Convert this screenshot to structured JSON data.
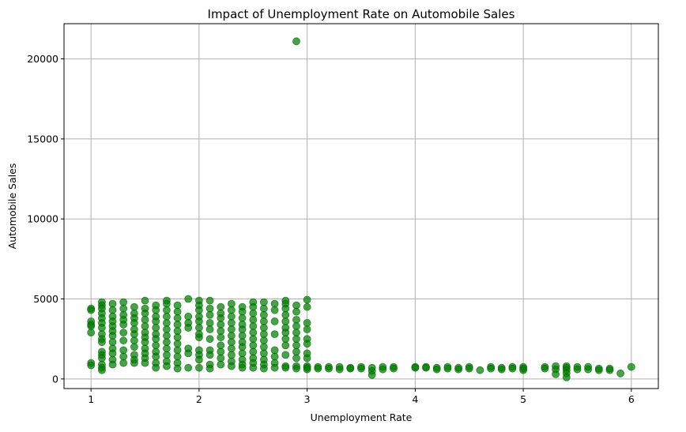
{
  "chart_data": {
    "type": "scatter",
    "title": "Impact of Unemployment Rate on Automobile Sales",
    "xlabel": "Unemployment Rate",
    "ylabel": "Automobile Sales",
    "xlim": [
      0.75,
      6.25
    ],
    "ylim": [
      -600,
      22200
    ],
    "xticks": [
      1,
      2,
      3,
      4,
      5,
      6
    ],
    "yticks": [
      0,
      5000,
      10000,
      15000,
      20000
    ],
    "grid": true,
    "color": "#008000",
    "series": [
      {
        "points": [
          [
            1.0,
            4400
          ],
          [
            1.0,
            4300
          ],
          [
            1.0,
            3600
          ],
          [
            1.0,
            3400
          ],
          [
            1.0,
            3300
          ],
          [
            1.0,
            2900
          ],
          [
            1.0,
            1000
          ],
          [
            1.0,
            850
          ],
          [
            1.1,
            4800
          ],
          [
            1.1,
            4600
          ],
          [
            1.1,
            4400
          ],
          [
            1.1,
            4100
          ],
          [
            1.1,
            3800
          ],
          [
            1.1,
            3500
          ],
          [
            1.1,
            3200
          ],
          [
            1.1,
            2800
          ],
          [
            1.1,
            2500
          ],
          [
            1.1,
            2300
          ],
          [
            1.1,
            1700
          ],
          [
            1.1,
            1500
          ],
          [
            1.1,
            1300
          ],
          [
            1.1,
            900
          ],
          [
            1.1,
            700
          ],
          [
            1.1,
            550
          ],
          [
            1.2,
            4700
          ],
          [
            1.2,
            4300
          ],
          [
            1.2,
            3900
          ],
          [
            1.2,
            3600
          ],
          [
            1.2,
            3300
          ],
          [
            1.2,
            3000
          ],
          [
            1.2,
            2700
          ],
          [
            1.2,
            2300
          ],
          [
            1.2,
            1900
          ],
          [
            1.2,
            1600
          ],
          [
            1.2,
            1200
          ],
          [
            1.2,
            900
          ],
          [
            1.3,
            4800
          ],
          [
            1.3,
            4400
          ],
          [
            1.3,
            4000
          ],
          [
            1.3,
            3700
          ],
          [
            1.3,
            3400
          ],
          [
            1.3,
            2900
          ],
          [
            1.3,
            2400
          ],
          [
            1.3,
            1800
          ],
          [
            1.3,
            1400
          ],
          [
            1.3,
            1000
          ],
          [
            1.4,
            4500
          ],
          [
            1.4,
            4100
          ],
          [
            1.4,
            3800
          ],
          [
            1.4,
            3500
          ],
          [
            1.4,
            3100
          ],
          [
            1.4,
            2800
          ],
          [
            1.4,
            2400
          ],
          [
            1.4,
            2000
          ],
          [
            1.4,
            1500
          ],
          [
            1.4,
            1200
          ],
          [
            1.4,
            1000
          ],
          [
            1.5,
            4900
          ],
          [
            1.5,
            4400
          ],
          [
            1.5,
            4100
          ],
          [
            1.5,
            3700
          ],
          [
            1.5,
            3300
          ],
          [
            1.5,
            2900
          ],
          [
            1.5,
            2600
          ],
          [
            1.5,
            2300
          ],
          [
            1.5,
            1900
          ],
          [
            1.5,
            1600
          ],
          [
            1.5,
            1300
          ],
          [
            1.5,
            1000
          ],
          [
            1.6,
            4600
          ],
          [
            1.6,
            4300
          ],
          [
            1.6,
            3900
          ],
          [
            1.6,
            3600
          ],
          [
            1.6,
            3200
          ],
          [
            1.6,
            2800
          ],
          [
            1.6,
            2500
          ],
          [
            1.6,
            2100
          ],
          [
            1.6,
            1700
          ],
          [
            1.6,
            1400
          ],
          [
            1.6,
            1000
          ],
          [
            1.6,
            700
          ],
          [
            1.7,
            4900
          ],
          [
            1.7,
            4700
          ],
          [
            1.7,
            4300
          ],
          [
            1.7,
            3900
          ],
          [
            1.7,
            3500
          ],
          [
            1.7,
            3100
          ],
          [
            1.7,
            2700
          ],
          [
            1.7,
            2300
          ],
          [
            1.7,
            1900
          ],
          [
            1.7,
            1500
          ],
          [
            1.7,
            1100
          ],
          [
            1.7,
            800
          ],
          [
            1.8,
            4600
          ],
          [
            1.8,
            4200
          ],
          [
            1.8,
            3800
          ],
          [
            1.8,
            3400
          ],
          [
            1.8,
            3000
          ],
          [
            1.8,
            2600
          ],
          [
            1.8,
            2200
          ],
          [
            1.8,
            1800
          ],
          [
            1.8,
            1400
          ],
          [
            1.8,
            1000
          ],
          [
            1.8,
            650
          ],
          [
            1.9,
            5000
          ],
          [
            1.9,
            3900
          ],
          [
            1.9,
            3500
          ],
          [
            1.9,
            3200
          ],
          [
            1.9,
            1900
          ],
          [
            1.9,
            1600
          ],
          [
            1.9,
            700
          ],
          [
            2.0,
            4900
          ],
          [
            2.0,
            4600
          ],
          [
            2.0,
            4300
          ],
          [
            2.0,
            3900
          ],
          [
            2.0,
            3600
          ],
          [
            2.0,
            3200
          ],
          [
            2.0,
            2800
          ],
          [
            2.0,
            2600
          ],
          [
            2.0,
            1800
          ],
          [
            2.0,
            1500
          ],
          [
            2.0,
            1200
          ],
          [
            2.0,
            700
          ],
          [
            2.1,
            4900
          ],
          [
            2.1,
            4400
          ],
          [
            2.1,
            4000
          ],
          [
            2.1,
            3500
          ],
          [
            2.1,
            3100
          ],
          [
            2.1,
            2500
          ],
          [
            2.1,
            1800
          ],
          [
            2.1,
            1500
          ],
          [
            2.1,
            900
          ],
          [
            2.1,
            650
          ],
          [
            2.2,
            4500
          ],
          [
            2.2,
            4100
          ],
          [
            2.2,
            3800
          ],
          [
            2.2,
            3400
          ],
          [
            2.2,
            3000
          ],
          [
            2.2,
            2600
          ],
          [
            2.2,
            2100
          ],
          [
            2.2,
            1700
          ],
          [
            2.2,
            1300
          ],
          [
            2.2,
            900
          ],
          [
            2.3,
            4700
          ],
          [
            2.3,
            4300
          ],
          [
            2.3,
            3900
          ],
          [
            2.3,
            3500
          ],
          [
            2.3,
            3100
          ],
          [
            2.3,
            2700
          ],
          [
            2.3,
            2300
          ],
          [
            2.3,
            1900
          ],
          [
            2.3,
            1500
          ],
          [
            2.3,
            1100
          ],
          [
            2.3,
            800
          ],
          [
            2.4,
            4500
          ],
          [
            2.4,
            4200
          ],
          [
            2.4,
            3800
          ],
          [
            2.4,
            3400
          ],
          [
            2.4,
            3100
          ],
          [
            2.4,
            2700
          ],
          [
            2.4,
            2300
          ],
          [
            2.4,
            2000
          ],
          [
            2.4,
            1600
          ],
          [
            2.4,
            1200
          ],
          [
            2.4,
            900
          ],
          [
            2.4,
            700
          ],
          [
            2.5,
            4800
          ],
          [
            2.5,
            4500
          ],
          [
            2.5,
            4100
          ],
          [
            2.5,
            3700
          ],
          [
            2.5,
            3300
          ],
          [
            2.5,
            2900
          ],
          [
            2.5,
            2500
          ],
          [
            2.5,
            2100
          ],
          [
            2.5,
            1700
          ],
          [
            2.5,
            1300
          ],
          [
            2.5,
            1000
          ],
          [
            2.5,
            700
          ],
          [
            2.6,
            4800
          ],
          [
            2.6,
            4400
          ],
          [
            2.6,
            4000
          ],
          [
            2.6,
            3600
          ],
          [
            2.6,
            3200
          ],
          [
            2.6,
            2800
          ],
          [
            2.6,
            2400
          ],
          [
            2.6,
            2000
          ],
          [
            2.6,
            1600
          ],
          [
            2.6,
            1200
          ],
          [
            2.6,
            900
          ],
          [
            2.6,
            650
          ],
          [
            2.7,
            4700
          ],
          [
            2.7,
            4300
          ],
          [
            2.7,
            3600
          ],
          [
            2.7,
            2800
          ],
          [
            2.7,
            1800
          ],
          [
            2.7,
            1400
          ],
          [
            2.7,
            1000
          ],
          [
            2.7,
            700
          ],
          [
            2.8,
            4900
          ],
          [
            2.8,
            4700
          ],
          [
            2.8,
            4400
          ],
          [
            2.8,
            4000
          ],
          [
            2.8,
            3600
          ],
          [
            2.8,
            3200
          ],
          [
            2.8,
            2900
          ],
          [
            2.8,
            2500
          ],
          [
            2.8,
            2100
          ],
          [
            2.8,
            1500
          ],
          [
            2.8,
            800
          ],
          [
            2.8,
            700
          ],
          [
            2.9,
            21100
          ],
          [
            2.9,
            4600
          ],
          [
            2.9,
            4200
          ],
          [
            2.9,
            3700
          ],
          [
            2.9,
            3300
          ],
          [
            2.9,
            2900
          ],
          [
            2.9,
            2500
          ],
          [
            2.9,
            2100
          ],
          [
            2.9,
            1700
          ],
          [
            2.9,
            1300
          ],
          [
            2.9,
            800
          ],
          [
            2.9,
            650
          ],
          [
            3.0,
            4950
          ],
          [
            3.0,
            4500
          ],
          [
            3.0,
            3500
          ],
          [
            3.0,
            3100
          ],
          [
            3.0,
            2500
          ],
          [
            3.0,
            2200
          ],
          [
            3.0,
            1600
          ],
          [
            3.0,
            1300
          ],
          [
            3.0,
            800
          ],
          [
            3.0,
            700
          ],
          [
            3.0,
            600
          ],
          [
            3.1,
            750
          ],
          [
            3.1,
            650
          ],
          [
            3.2,
            750
          ],
          [
            3.2,
            650
          ],
          [
            3.3,
            750
          ],
          [
            3.3,
            600
          ],
          [
            3.4,
            700
          ],
          [
            3.4,
            650
          ],
          [
            3.5,
            750
          ],
          [
            3.5,
            650
          ],
          [
            3.6,
            700
          ],
          [
            3.6,
            500
          ],
          [
            3.6,
            250
          ],
          [
            3.7,
            750
          ],
          [
            3.7,
            600
          ],
          [
            3.8,
            750
          ],
          [
            3.8,
            650
          ],
          [
            4.0,
            750
          ],
          [
            4.0,
            700
          ],
          [
            4.1,
            750
          ],
          [
            4.1,
            700
          ],
          [
            4.2,
            700
          ],
          [
            4.2,
            600
          ],
          [
            4.3,
            750
          ],
          [
            4.3,
            650
          ],
          [
            4.4,
            700
          ],
          [
            4.4,
            600
          ],
          [
            4.5,
            750
          ],
          [
            4.5,
            650
          ],
          [
            4.6,
            550
          ],
          [
            4.7,
            750
          ],
          [
            4.7,
            650
          ],
          [
            4.8,
            700
          ],
          [
            4.8,
            600
          ],
          [
            4.9,
            750
          ],
          [
            4.9,
            650
          ],
          [
            5.0,
            750
          ],
          [
            5.0,
            650
          ],
          [
            5.0,
            550
          ],
          [
            5.2,
            750
          ],
          [
            5.2,
            650
          ],
          [
            5.3,
            800
          ],
          [
            5.3,
            600
          ],
          [
            5.3,
            300
          ],
          [
            5.4,
            800
          ],
          [
            5.4,
            700
          ],
          [
            5.4,
            550
          ],
          [
            5.4,
            350
          ],
          [
            5.4,
            100
          ],
          [
            5.5,
            750
          ],
          [
            5.5,
            600
          ],
          [
            5.6,
            750
          ],
          [
            5.6,
            600
          ],
          [
            5.7,
            650
          ],
          [
            5.7,
            550
          ],
          [
            5.8,
            650
          ],
          [
            5.8,
            550
          ],
          [
            5.9,
            350
          ],
          [
            6.0,
            750
          ]
        ]
      }
    ]
  }
}
